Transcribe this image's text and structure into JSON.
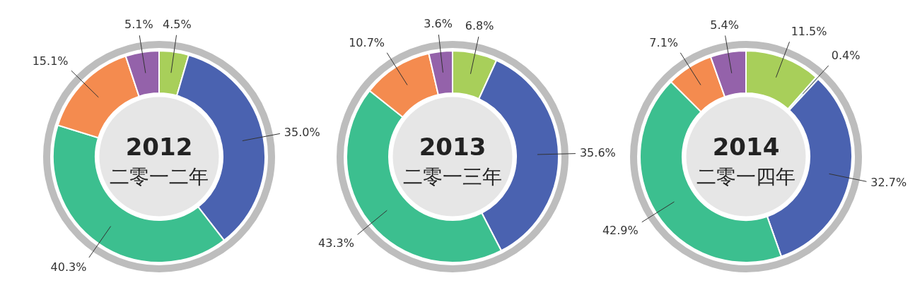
{
  "chart_data": [
    {
      "type": "donut",
      "title": "2012",
      "subtitle": "二零一二年",
      "categories": [
        null,
        null,
        null,
        null,
        null
      ],
      "values": [
        4.5,
        35.0,
        40.3,
        15.1,
        5.1
      ],
      "colors": [
        "#a8cf5a",
        "#4a62b0",
        "#3cbf8f",
        "#f48b4f",
        "#9462aa"
      ],
      "value_labels": [
        "4.5%",
        "35.0%",
        "40.3%",
        "15.1%",
        "5.1%"
      ]
    },
    {
      "type": "donut",
      "title": "2013",
      "subtitle": "二零一三年",
      "categories": [
        null,
        null,
        null,
        null,
        null
      ],
      "values": [
        6.8,
        35.6,
        43.3,
        10.7,
        3.6
      ],
      "colors": [
        "#a8cf5a",
        "#4a62b0",
        "#3cbf8f",
        "#f48b4f",
        "#9462aa"
      ],
      "value_labels": [
        "6.8%",
        "35.6%",
        "43.3%",
        "10.7%",
        "3.6%"
      ]
    },
    {
      "type": "donut",
      "title": "2014",
      "subtitle": "二零一四年",
      "categories": [
        null,
        null,
        null,
        null,
        null,
        null
      ],
      "values": [
        11.5,
        0.4,
        32.7,
        42.9,
        7.1,
        5.4
      ],
      "colors": [
        "#a8cf5a",
        "#a6dcea",
        "#4a62b0",
        "#3cbf8f",
        "#f48b4f",
        "#9462aa"
      ],
      "value_labels": [
        "11.5%",
        "0.4%",
        "32.7%",
        "42.9%",
        "7.1%",
        "5.4%"
      ]
    }
  ]
}
